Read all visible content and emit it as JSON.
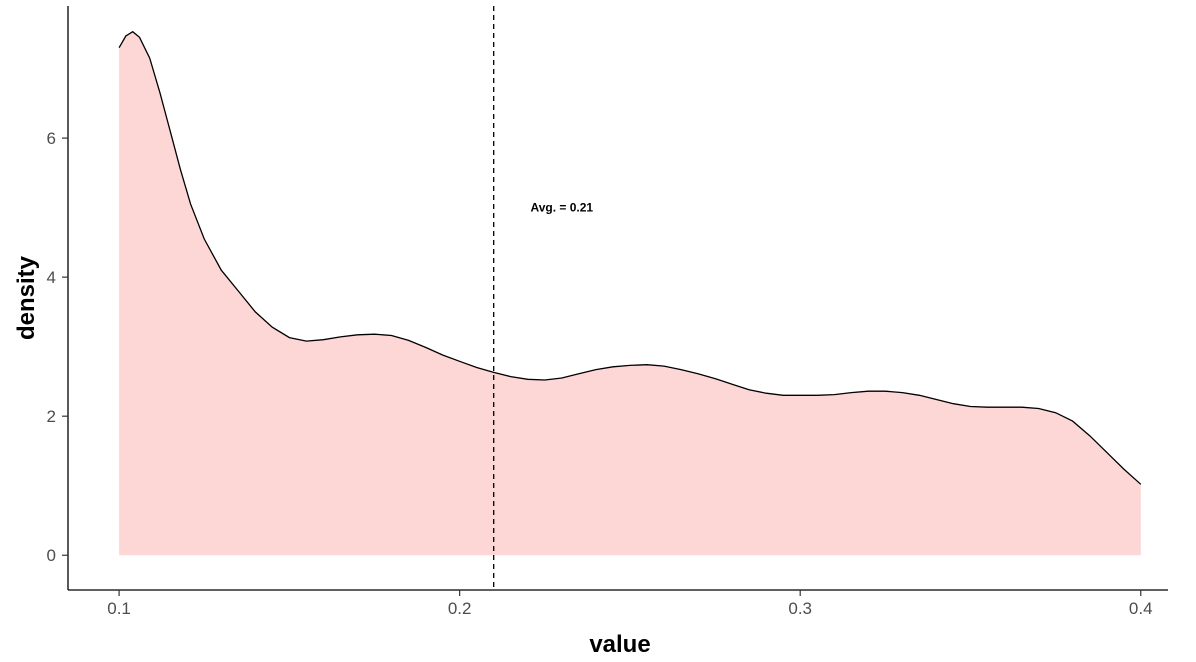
{
  "chart_data": {
    "type": "area",
    "title": "",
    "xlabel": "value",
    "ylabel": "density",
    "xlim": [
      0.085,
      0.408
    ],
    "ylim": [
      -0.5,
      7.9
    ],
    "x_ticks": [
      0.1,
      0.2,
      0.3,
      0.4
    ],
    "x_tick_labels": [
      "0.1",
      "0.2",
      "0.3",
      "0.4"
    ],
    "y_ticks": [
      0,
      2,
      4,
      6
    ],
    "y_tick_labels": [
      "0",
      "2",
      "4",
      "6"
    ],
    "grid": false,
    "legend": "none",
    "series": [
      {
        "x": [
          0.1,
          0.102,
          0.104,
          0.106,
          0.109,
          0.112,
          0.115,
          0.118,
          0.121,
          0.125,
          0.13,
          0.135,
          0.14,
          0.145,
          0.15,
          0.155,
          0.16,
          0.165,
          0.17,
          0.175,
          0.18,
          0.185,
          0.19,
          0.195,
          0.2,
          0.205,
          0.21,
          0.215,
          0.22,
          0.225,
          0.23,
          0.235,
          0.24,
          0.245,
          0.25,
          0.255,
          0.26,
          0.265,
          0.27,
          0.275,
          0.28,
          0.285,
          0.29,
          0.295,
          0.3,
          0.305,
          0.31,
          0.315,
          0.32,
          0.325,
          0.33,
          0.335,
          0.34,
          0.345,
          0.35,
          0.355,
          0.36,
          0.365,
          0.37,
          0.375,
          0.38,
          0.385,
          0.39,
          0.395,
          0.4
        ],
        "y": [
          7.3,
          7.47,
          7.53,
          7.45,
          7.15,
          6.65,
          6.1,
          5.55,
          5.05,
          4.55,
          4.1,
          3.8,
          3.5,
          3.28,
          3.13,
          3.08,
          3.1,
          3.14,
          3.17,
          3.18,
          3.16,
          3.09,
          2.99,
          2.88,
          2.79,
          2.7,
          2.63,
          2.57,
          2.53,
          2.52,
          2.55,
          2.61,
          2.67,
          2.71,
          2.73,
          2.74,
          2.72,
          2.67,
          2.61,
          2.54,
          2.46,
          2.38,
          2.33,
          2.3,
          2.3,
          2.3,
          2.31,
          2.34,
          2.36,
          2.36,
          2.34,
          2.3,
          2.24,
          2.18,
          2.14,
          2.13,
          2.13,
          2.13,
          2.11,
          2.05,
          1.93,
          1.72,
          1.48,
          1.24,
          1.02
        ],
        "fill": "#fcd7d5",
        "line": "#000000"
      }
    ],
    "reference_line": {
      "x": 0.21,
      "style": "dashed",
      "color": "#000000"
    },
    "annotation": {
      "text": "Avg. = 0.21",
      "x": 0.23,
      "y": 5.0
    }
  }
}
